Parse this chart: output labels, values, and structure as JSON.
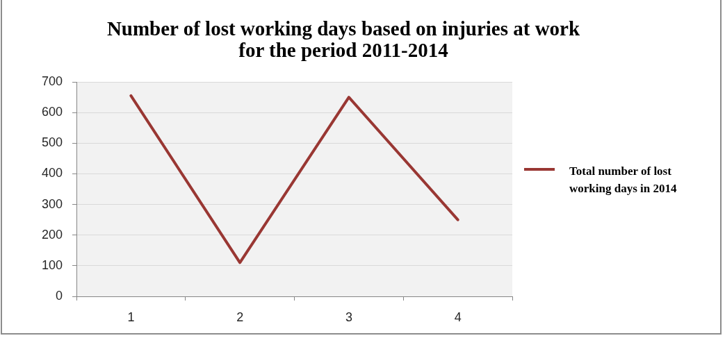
{
  "chart_data": {
    "type": "line",
    "title": "Number of lost working days based on injuries at work for the period 2011-2014",
    "categories": [
      "1",
      "2",
      "3",
      "4"
    ],
    "series": [
      {
        "name": "Total number of lost working days in 2014",
        "color": "#993733",
        "values": [
          655,
          110,
          650,
          250
        ]
      }
    ],
    "ylim": [
      0,
      700
    ],
    "yticks": [
      0,
      100,
      200,
      300,
      400,
      500,
      600,
      700
    ],
    "grid": "y",
    "legend": "right",
    "marker": "none",
    "line_style": "solid"
  }
}
